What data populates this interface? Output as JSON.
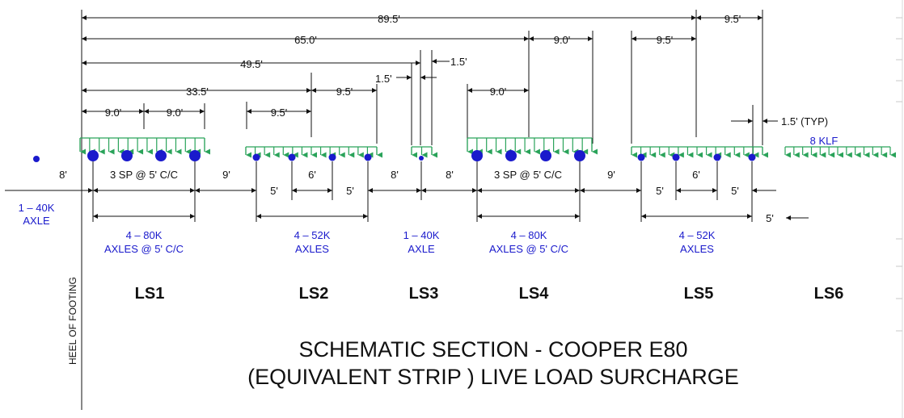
{
  "title": {
    "line1": "SCHEMATIC SECTION - COOPER E80",
    "line2": "(EQUIVALENT STRIP ) LIVE LOAD SURCHARGE"
  },
  "heel_label": "HEEL OF FOOTING",
  "cases": {
    "ls1": "LS1",
    "ls2": "LS2",
    "ls3": "LS3",
    "ls4": "LS4",
    "ls5": "LS5",
    "ls6": "LS6"
  },
  "top_dims": {
    "d89_5": "89.5'",
    "d9_5_right": "9.5'",
    "d65_0": "65.0'",
    "d9_0_ls4": "9.0'",
    "d9_5_ls5": "9.5'",
    "d49_5": "49.5'",
    "d1_5_a": "1.5'",
    "d1_5_b": "1.5'",
    "d33_5": "33.5'",
    "d9_5_ls2_right": "9.5'",
    "d9_0_ls4_left": "9.0'",
    "d9_0_ls1_a": "9.0'",
    "d9_0_ls1_b": "9.0'",
    "d9_5_ls2": "9.5'",
    "d1_5_typ": "1.5' (TYP)"
  },
  "gap_dims": {
    "g8_a": "8'",
    "g9_a": "9'",
    "g8_b": "8'",
    "g8_c": "8'",
    "g9_b": "9'",
    "sp1": "3 SP @ 5' C/C",
    "sp4": "3 SP @ 5' C/C",
    "ls2_5a": "5'",
    "ls2_6": "6'",
    "ls2_5b": "5'",
    "ls5_5a": "5'",
    "ls5_6": "6'",
    "ls5_5b": "5'",
    "ls6_5": "5'"
  },
  "load_labels": {
    "axle40_left_1": "1 – 40K",
    "axle40_left_2": "AXLE",
    "ls1_1": "4 – 80K",
    "ls1_2": "AXLES @ 5' C/C",
    "ls2_1": "4 – 52K",
    "ls2_2": "AXLES",
    "ls3_1": "1 – 40K",
    "ls3_2": "AXLE",
    "ls4_1": "4 – 80K",
    "ls4_2": "AXLES @ 5' C/C",
    "ls5_1": "4 – 52K",
    "ls5_2": "AXLES",
    "ls6_klf": "8 KLF"
  },
  "colors": {
    "axle": "#1a1acc",
    "strip_load": "#2aa35a",
    "line": "#111111"
  }
}
